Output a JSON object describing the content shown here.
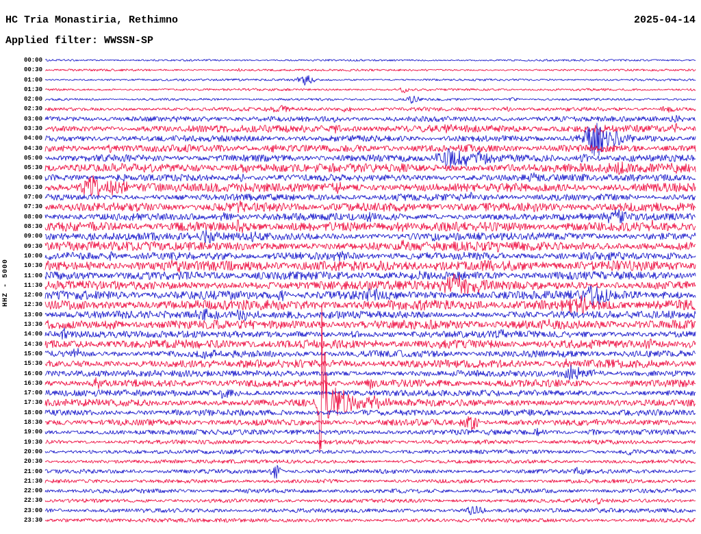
{
  "header": {
    "station_title": "HC Tria Monastiria, Rethimno",
    "date": "2025-04-14",
    "filter_label": "Applied filter: WWSSN-SP"
  },
  "axis": {
    "left_label": "HHZ - 5000"
  },
  "chart_data": {
    "type": "line",
    "subtype": "helicorder-seismogram",
    "title": "HC Tria Monastiria, Rethimno",
    "date": "2025-04-14",
    "filter": "WWSSN-SP",
    "channel": "HHZ",
    "amplitude_scale": 5000,
    "minutes_per_row": 30,
    "legend_position": "none",
    "grid": false,
    "palette": {
      "blue": "#2020cc",
      "red": "#ee1446"
    },
    "rows": [
      {
        "time": "00:00",
        "color": "blue",
        "noise": 0.8,
        "events": []
      },
      {
        "time": "00:30",
        "color": "red",
        "noise": 0.9,
        "events": [
          [
            0.3,
            2,
            3
          ]
        ]
      },
      {
        "time": "01:00",
        "color": "blue",
        "noise": 0.9,
        "events": [
          [
            0.4,
            8,
            8
          ]
        ]
      },
      {
        "time": "01:30",
        "color": "red",
        "noise": 1.0,
        "events": [
          [
            0.55,
            5,
            6
          ]
        ]
      },
      {
        "time": "02:00",
        "color": "blue",
        "noise": 1.0,
        "events": [
          [
            0.565,
            5,
            7
          ],
          [
            0.72,
            3,
            4
          ]
        ]
      },
      {
        "time": "02:30",
        "color": "red",
        "noise": 1.6,
        "events": [
          [
            0.36,
            5,
            12
          ],
          [
            0.465,
            4,
            6
          ],
          [
            0.71,
            3,
            4
          ],
          [
            0.955,
            4,
            8
          ]
        ]
      },
      {
        "time": "03:00",
        "color": "blue",
        "noise": 2.2,
        "events": [
          [
            0.2,
            3,
            8
          ],
          [
            0.45,
            3,
            6
          ],
          [
            0.97,
            6,
            6
          ]
        ]
      },
      {
        "time": "03:30",
        "color": "red",
        "noise": 3.0,
        "events": [
          [
            0.45,
            5,
            6
          ],
          [
            0.62,
            4,
            6
          ],
          [
            0.85,
            6,
            10
          ],
          [
            0.97,
            5,
            6
          ]
        ]
      },
      {
        "time": "04:00",
        "color": "blue",
        "noise": 2.6,
        "events": [
          [
            0.845,
            26,
            10
          ],
          [
            0.86,
            12,
            20
          ]
        ]
      },
      {
        "time": "04:30",
        "color": "red",
        "noise": 3.0,
        "events": [
          [
            0.1,
            4,
            6
          ],
          [
            0.35,
            4,
            5
          ]
        ]
      },
      {
        "time": "05:00",
        "color": "blue",
        "noise": 2.8,
        "events": [
          [
            0.62,
            13,
            14
          ],
          [
            0.66,
            8,
            20
          ],
          [
            0.83,
            5,
            6
          ]
        ]
      },
      {
        "time": "05:30",
        "color": "red",
        "noise": 3.6,
        "events": [
          [
            0.3,
            6,
            8
          ],
          [
            0.55,
            5,
            6
          ],
          [
            0.88,
            7,
            8
          ],
          [
            0.97,
            6,
            6
          ]
        ]
      },
      {
        "time": "06:00",
        "color": "blue",
        "noise": 2.8,
        "events": [
          [
            0.12,
            5,
            6
          ],
          [
            0.3,
            4,
            6
          ],
          [
            0.75,
            4,
            5
          ]
        ]
      },
      {
        "time": "06:30",
        "color": "red",
        "noise": 3.6,
        "events": [
          [
            0.07,
            13,
            12
          ],
          [
            0.1,
            8,
            18
          ],
          [
            0.45,
            5,
            6
          ]
        ]
      },
      {
        "time": "07:00",
        "color": "blue",
        "noise": 2.8,
        "events": [
          [
            0.55,
            5,
            6
          ],
          [
            0.65,
            5,
            6
          ]
        ]
      },
      {
        "time": "07:30",
        "color": "red",
        "noise": 3.6,
        "events": [
          [
            0.3,
            5,
            6
          ],
          [
            0.55,
            5,
            8
          ],
          [
            0.75,
            4,
            6
          ]
        ]
      },
      {
        "time": "08:00",
        "color": "blue",
        "noise": 3.0,
        "events": [
          [
            0.28,
            6,
            8
          ],
          [
            0.5,
            5,
            6
          ],
          [
            0.88,
            7,
            12
          ]
        ]
      },
      {
        "time": "08:30",
        "color": "red",
        "noise": 3.8,
        "events": [
          [
            0.3,
            6,
            8
          ],
          [
            0.55,
            6,
            12
          ],
          [
            0.93,
            5,
            6
          ]
        ]
      },
      {
        "time": "09:00",
        "color": "blue",
        "noise": 3.2,
        "events": [
          [
            0.25,
            6,
            8
          ],
          [
            0.32,
            5,
            6
          ],
          [
            0.6,
            4,
            6
          ]
        ]
      },
      {
        "time": "09:30",
        "color": "red",
        "noise": 3.8,
        "events": [
          [
            0.3,
            5,
            6
          ],
          [
            0.55,
            4,
            6
          ],
          [
            0.7,
            4,
            6
          ]
        ]
      },
      {
        "time": "10:00",
        "color": "blue",
        "noise": 3.2,
        "events": [
          [
            0.1,
            5,
            6
          ],
          [
            0.45,
            5,
            6
          ]
        ]
      },
      {
        "time": "10:30",
        "color": "red",
        "noise": 4.2,
        "events": [
          [
            0.2,
            4,
            10
          ],
          [
            0.6,
            4,
            10
          ]
        ]
      },
      {
        "time": "11:00",
        "color": "blue",
        "noise": 3.4,
        "events": [
          [
            0.5,
            5,
            6
          ],
          [
            0.57,
            5,
            5
          ]
        ]
      },
      {
        "time": "11:30",
        "color": "red",
        "noise": 3.8,
        "events": [
          [
            0.63,
            13,
            10
          ],
          [
            0.65,
            8,
            16
          ]
        ]
      },
      {
        "time": "12:00",
        "color": "blue",
        "noise": 3.6,
        "events": [
          [
            0.36,
            8,
            8
          ],
          [
            0.5,
            7,
            8
          ],
          [
            0.845,
            11,
            14
          ]
        ]
      },
      {
        "time": "12:30",
        "color": "red",
        "noise": 4.2,
        "events": [
          [
            0.82,
            8,
            14
          ]
        ]
      },
      {
        "time": "13:00",
        "color": "blue",
        "noise": 3.2,
        "events": [
          [
            0.25,
            8,
            12
          ],
          [
            0.3,
            6,
            14
          ]
        ]
      },
      {
        "time": "13:30",
        "color": "red",
        "noise": 3.8,
        "events": [
          [
            0.1,
            4,
            8
          ],
          [
            0.77,
            5,
            6
          ]
        ]
      },
      {
        "time": "14:00",
        "color": "blue",
        "noise": 2.8,
        "events": [
          [
            0.03,
            6,
            5
          ],
          [
            0.48,
            5,
            6
          ],
          [
            0.7,
            5,
            6
          ]
        ]
      },
      {
        "time": "14:30",
        "color": "red",
        "noise": 3.6,
        "events": [
          [
            0.5,
            5,
            6
          ],
          [
            0.93,
            5,
            6
          ]
        ]
      },
      {
        "time": "15:00",
        "color": "blue",
        "noise": 2.8,
        "events": [
          [
            0.05,
            6,
            5
          ],
          [
            0.25,
            5,
            6
          ]
        ]
      },
      {
        "time": "15:30",
        "color": "red",
        "noise": 3.4,
        "events": [
          [
            0.8,
            6,
            8
          ]
        ]
      },
      {
        "time": "16:00",
        "color": "blue",
        "noise": 2.6,
        "events": [
          [
            0.81,
            10,
            10
          ],
          [
            0.83,
            6,
            14
          ]
        ]
      },
      {
        "time": "16:30",
        "color": "red",
        "noise": 3.0,
        "events": [
          [
            0.08,
            6,
            6
          ],
          [
            0.5,
            5,
            8
          ]
        ]
      },
      {
        "time": "17:00",
        "color": "blue",
        "noise": 2.6,
        "events": [
          [
            0.28,
            6,
            10
          ]
        ]
      },
      {
        "time": "17:30",
        "color": "red",
        "noise": 3.0,
        "events": [
          [
            0.425,
            142,
            2.2
          ],
          [
            0.428,
            60,
            4
          ],
          [
            0.435,
            26,
            9
          ],
          [
            0.455,
            14,
            16
          ],
          [
            0.5,
            7,
            22
          ]
        ]
      },
      {
        "time": "18:00",
        "color": "blue",
        "noise": 2.6,
        "events": [
          [
            0.5,
            3,
            6
          ]
        ]
      },
      {
        "time": "18:30",
        "color": "red",
        "noise": 2.6,
        "events": [
          [
            0.655,
            9,
            9
          ]
        ]
      },
      {
        "time": "19:00",
        "color": "blue",
        "noise": 2.2,
        "events": [
          [
            0.76,
            5,
            5
          ],
          [
            0.84,
            4,
            5
          ]
        ]
      },
      {
        "time": "19:30",
        "color": "red",
        "noise": 1.8,
        "events": []
      },
      {
        "time": "20:00",
        "color": "blue",
        "noise": 1.8,
        "events": [
          [
            0.9,
            3,
            4
          ]
        ]
      },
      {
        "time": "20:30",
        "color": "red",
        "noise": 1.6,
        "events": []
      },
      {
        "time": "21:00",
        "color": "blue",
        "noise": 1.8,
        "events": [
          [
            0.355,
            10,
            5
          ],
          [
            0.82,
            4,
            5
          ]
        ]
      },
      {
        "time": "21:30",
        "color": "red",
        "noise": 1.6,
        "events": []
      },
      {
        "time": "22:00",
        "color": "blue",
        "noise": 1.8,
        "events": [
          [
            0.15,
            3,
            4
          ]
        ]
      },
      {
        "time": "22:30",
        "color": "red",
        "noise": 1.6,
        "events": [
          [
            0.85,
            3,
            4
          ]
        ]
      },
      {
        "time": "23:00",
        "color": "blue",
        "noise": 1.8,
        "events": [
          [
            0.66,
            6,
            10
          ]
        ]
      },
      {
        "time": "23:30",
        "color": "red",
        "noise": 1.6,
        "events": []
      }
    ]
  }
}
